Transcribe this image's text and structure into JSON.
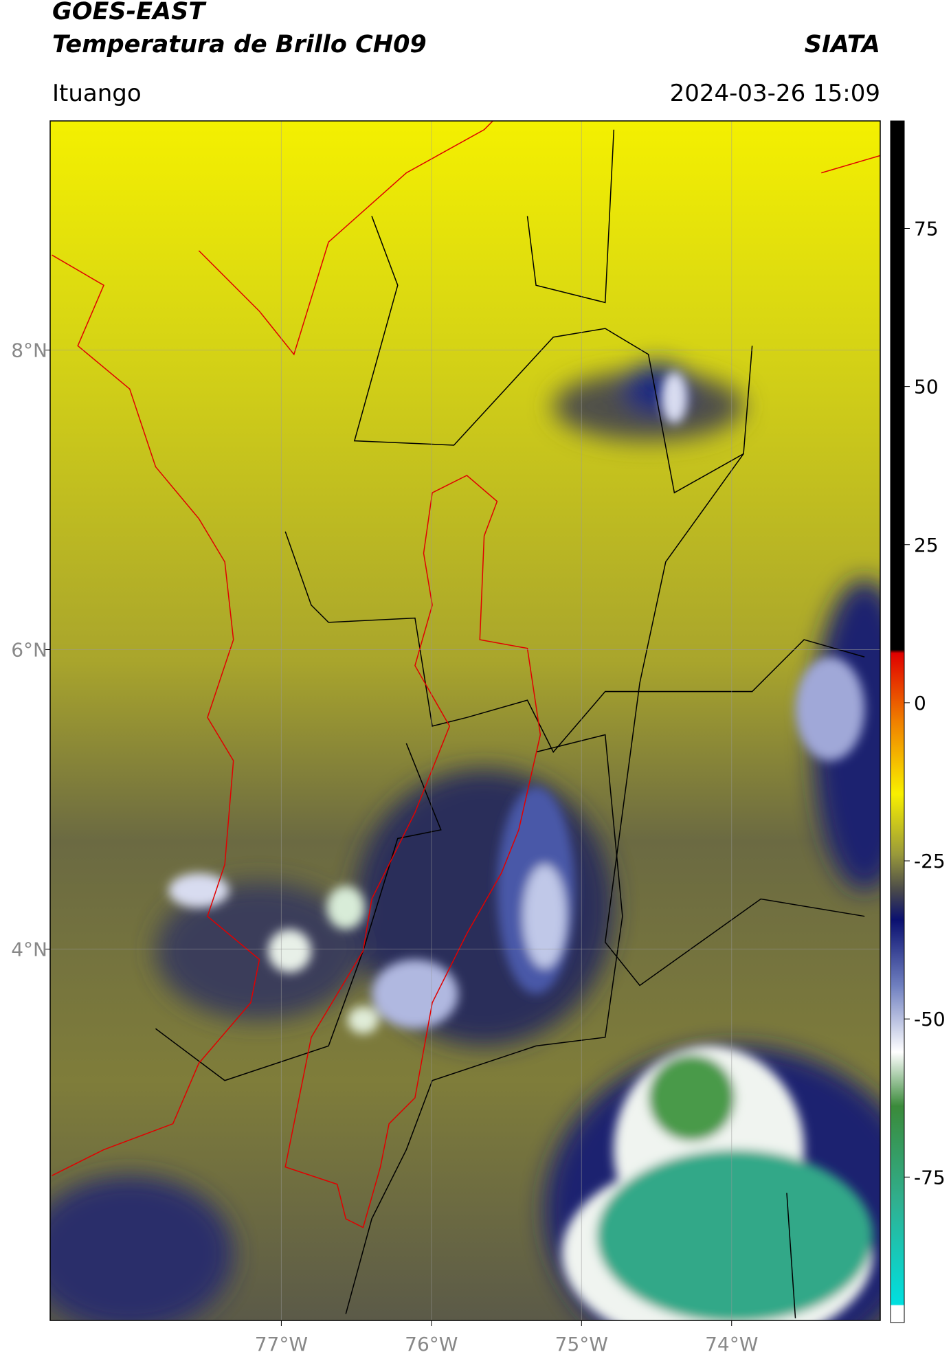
{
  "header": {
    "title_line1": "GOES-EAST",
    "title_line2": "Temperatura de Brillo CH09",
    "brand": "SIATA",
    "location": "Ituango",
    "timestamp": "2024-03-26 15:09"
  },
  "map": {
    "xlim": [
      -78.54,
      -73.01
    ],
    "ylim": [
      1.52,
      9.53
    ],
    "xticks": [
      {
        "value": -77,
        "label": "77°W"
      },
      {
        "value": -76,
        "label": "76°W"
      },
      {
        "value": -75,
        "label": "75°W"
      },
      {
        "value": -74,
        "label": "74°W"
      }
    ],
    "yticks": [
      {
        "value": 8,
        "label": "8°N"
      },
      {
        "value": 6,
        "label": "6°N"
      },
      {
        "value": 4,
        "label": "4°N"
      }
    ],
    "grid": true
  },
  "colorbar": {
    "lim": [
      -98,
      92
    ],
    "ticks": [
      75,
      50,
      25,
      0,
      -25,
      -50,
      -75
    ]
  }
}
